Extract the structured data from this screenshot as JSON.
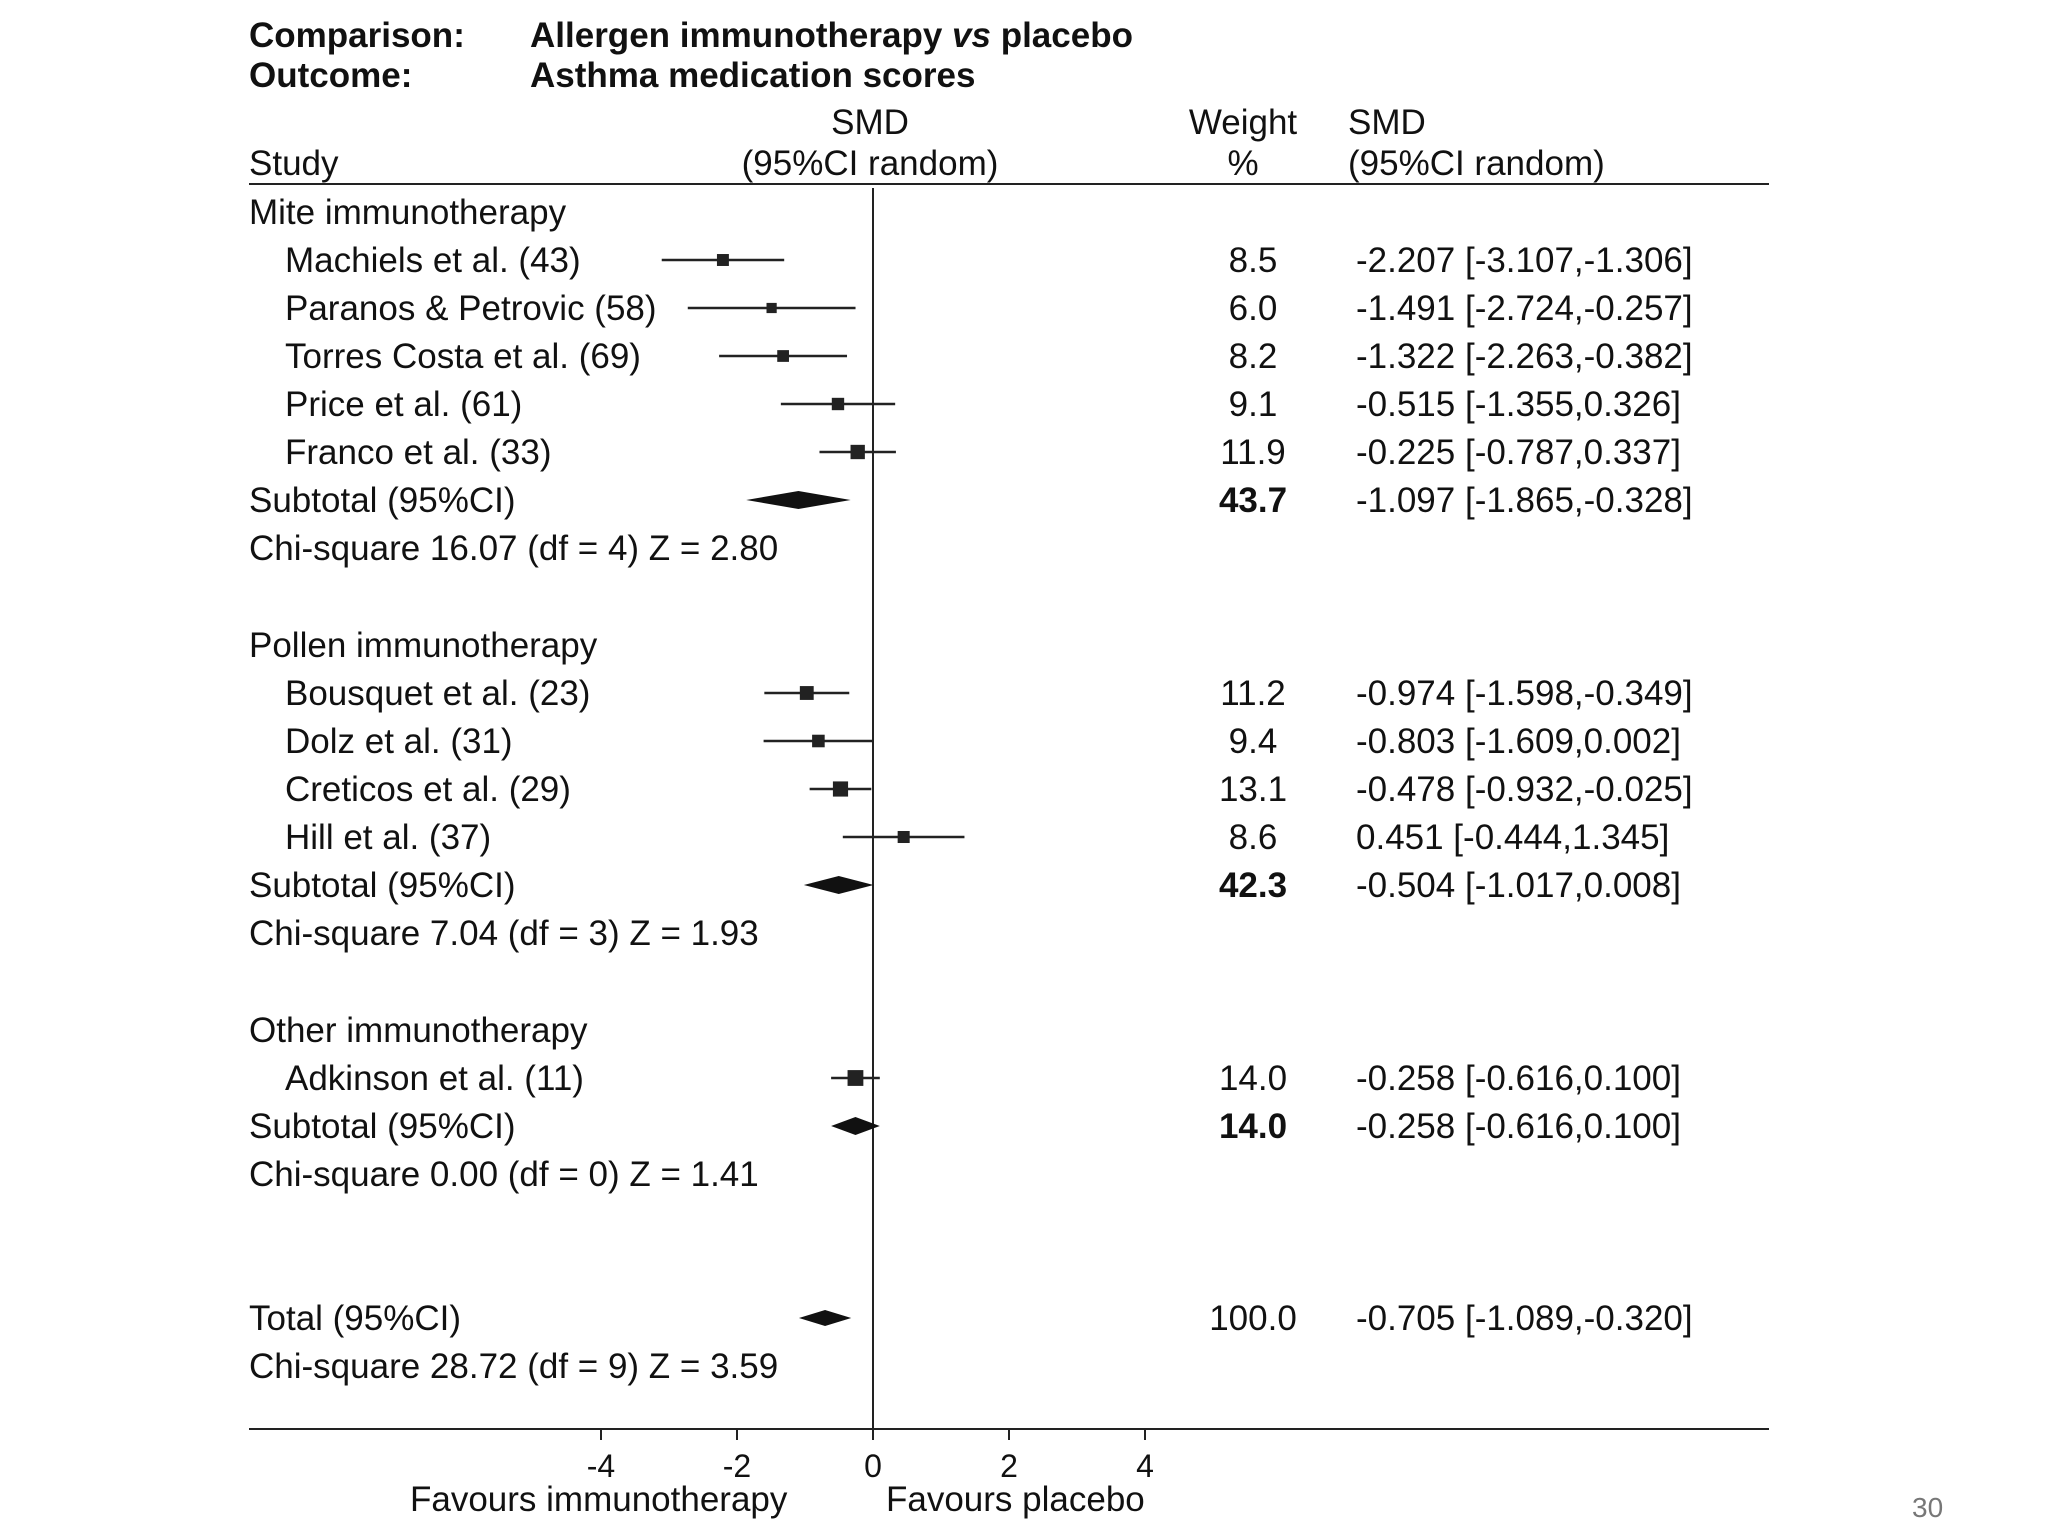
{
  "slide": {
    "page_number": "30"
  },
  "header": {
    "comparison_label": "Comparison:",
    "comparison_value": "Allergen immunotherapy ",
    "comparison_vs": "vs",
    "comparison_tail": " placebo",
    "outcome_label": "Outcome:",
    "outcome_value": "Asthma medication scores"
  },
  "columns": {
    "study": "Study",
    "smd_plot_line1": "SMD",
    "smd_plot_line2": "(95%CI random)",
    "weight_line1": "Weight",
    "weight_line2": "%",
    "smd_text_line1": "SMD",
    "smd_text_line2": "(95%CI random)"
  },
  "groups": [
    {
      "name": "Mite immunotherapy",
      "studies": [
        {
          "label": "Machiels et al. (43)",
          "weight": "8.5",
          "ci_text": "-2.207 [-3.107,-1.306]"
        },
        {
          "label": "Paranos & Petrovic (58)",
          "weight": "6.0",
          "ci_text": "-1.491 [-2.724,-0.257]"
        },
        {
          "label": "Torres Costa et al. (69)",
          "weight": "8.2",
          "ci_text": "-1.322 [-2.263,-0.382]"
        },
        {
          "label": "Price et al. (61)",
          "weight": "9.1",
          "ci_text": "-0.515 [-1.355,0.326]"
        },
        {
          "label": "Franco et al. (33)",
          "weight": "11.9",
          "ci_text": "-0.225 [-0.787,0.337]"
        }
      ],
      "subtotal": {
        "label": "Subtotal (95%CI)",
        "weight": "43.7",
        "ci_text": "-1.097 [-1.865,-0.328]"
      },
      "heterogeneity": "Chi-square 16.07 (df = 4) Z = 2.80"
    },
    {
      "name": "Pollen immunotherapy",
      "studies": [
        {
          "label": "Bousquet et al. (23)",
          "weight": "11.2",
          "ci_text": "-0.974 [-1.598,-0.349]"
        },
        {
          "label": "Dolz et al. (31)",
          "weight": "9.4",
          "ci_text": "-0.803 [-1.609,0.002]"
        },
        {
          "label": "Creticos et al. (29)",
          "weight": "13.1",
          "ci_text": "-0.478 [-0.932,-0.025]"
        },
        {
          "label": "Hill et al. (37)",
          "weight": "8.6",
          "ci_text": "0.451 [-0.444,1.345]"
        }
      ],
      "subtotal": {
        "label": "Subtotal (95%CI)",
        "weight": "42.3",
        "ci_text": "-0.504 [-1.017,0.008]"
      },
      "heterogeneity": "Chi-square 7.04 (df = 3) Z = 1.93"
    },
    {
      "name": "Other immunotherapy",
      "studies": [
        {
          "label": "Adkinson et al. (11)",
          "weight": "14.0",
          "ci_text": "-0.258 [-0.616,0.100]"
        }
      ],
      "subtotal": {
        "label": "Subtotal (95%CI)",
        "weight": "14.0",
        "ci_text": "-0.258 [-0.616,0.100]"
      },
      "heterogeneity": "Chi-square 0.00 (df = 0) Z = 1.41"
    }
  ],
  "total": {
    "label": "Total (95%CI)",
    "weight": "100.0",
    "ci_text": "-0.705 [-1.089,-0.320]",
    "heterogeneity": "Chi-square 28.72 (df = 9) Z = 3.59"
  },
  "axis": {
    "favours_left": "Favours immunotherapy",
    "favours_right": "Favours placebo"
  },
  "chart_data": {
    "type": "forest",
    "title": "Comparison: Allergen immunotherapy vs placebo — Outcome: Asthma medication scores",
    "xlabel_left": "Favours immunotherapy",
    "xlabel_right": "Favours placebo",
    "xlim": [
      -4,
      4
    ],
    "ticks": [
      -4,
      -2,
      0,
      2,
      4
    ],
    "tick_labels": [
      "-4",
      "-2",
      "0",
      "2",
      "4"
    ],
    "series": [
      {
        "name": "Machiels et al. (43)",
        "group": "Mite immunotherapy",
        "kind": "study",
        "est": -2.207,
        "lo": -3.107,
        "hi": -1.306,
        "weight": 8.5
      },
      {
        "name": "Paranos & Petrovic (58)",
        "group": "Mite immunotherapy",
        "kind": "study",
        "est": -1.491,
        "lo": -2.724,
        "hi": -0.257,
        "weight": 6.0
      },
      {
        "name": "Torres Costa et al. (69)",
        "group": "Mite immunotherapy",
        "kind": "study",
        "est": -1.322,
        "lo": -2.263,
        "hi": -0.382,
        "weight": 8.2
      },
      {
        "name": "Price et al. (61)",
        "group": "Mite immunotherapy",
        "kind": "study",
        "est": -0.515,
        "lo": -1.355,
        "hi": 0.326,
        "weight": 9.1
      },
      {
        "name": "Franco et al. (33)",
        "group": "Mite immunotherapy",
        "kind": "study",
        "est": -0.225,
        "lo": -0.787,
        "hi": 0.337,
        "weight": 11.9
      },
      {
        "name": "Subtotal (95%CI)",
        "group": "Mite immunotherapy",
        "kind": "subtotal",
        "est": -1.097,
        "lo": -1.865,
        "hi": -0.328,
        "weight": 43.7
      },
      {
        "name": "Bousquet et al. (23)",
        "group": "Pollen immunotherapy",
        "kind": "study",
        "est": -0.974,
        "lo": -1.598,
        "hi": -0.349,
        "weight": 11.2
      },
      {
        "name": "Dolz et al. (31)",
        "group": "Pollen immunotherapy",
        "kind": "study",
        "est": -0.803,
        "lo": -1.609,
        "hi": 0.002,
        "weight": 9.4
      },
      {
        "name": "Creticos et al. (29)",
        "group": "Pollen immunotherapy",
        "kind": "study",
        "est": -0.478,
        "lo": -0.932,
        "hi": -0.025,
        "weight": 13.1
      },
      {
        "name": "Hill et al. (37)",
        "group": "Pollen immunotherapy",
        "kind": "study",
        "est": 0.451,
        "lo": -0.444,
        "hi": 1.345,
        "weight": 8.6
      },
      {
        "name": "Subtotal (95%CI)",
        "group": "Pollen immunotherapy",
        "kind": "subtotal",
        "est": -0.504,
        "lo": -1.017,
        "hi": 0.008,
        "weight": 42.3
      },
      {
        "name": "Adkinson et al. (11)",
        "group": "Other immunotherapy",
        "kind": "study",
        "est": -0.258,
        "lo": -0.616,
        "hi": 0.1,
        "weight": 14.0
      },
      {
        "name": "Subtotal (95%CI)",
        "group": "Other immunotherapy",
        "kind": "subtotal",
        "est": -0.258,
        "lo": -0.616,
        "hi": 0.1,
        "weight": 14.0
      },
      {
        "name": "Total (95%CI)",
        "group": "All",
        "kind": "total",
        "est": -0.705,
        "lo": -1.089,
        "hi": -0.32,
        "weight": 100.0
      }
    ]
  }
}
